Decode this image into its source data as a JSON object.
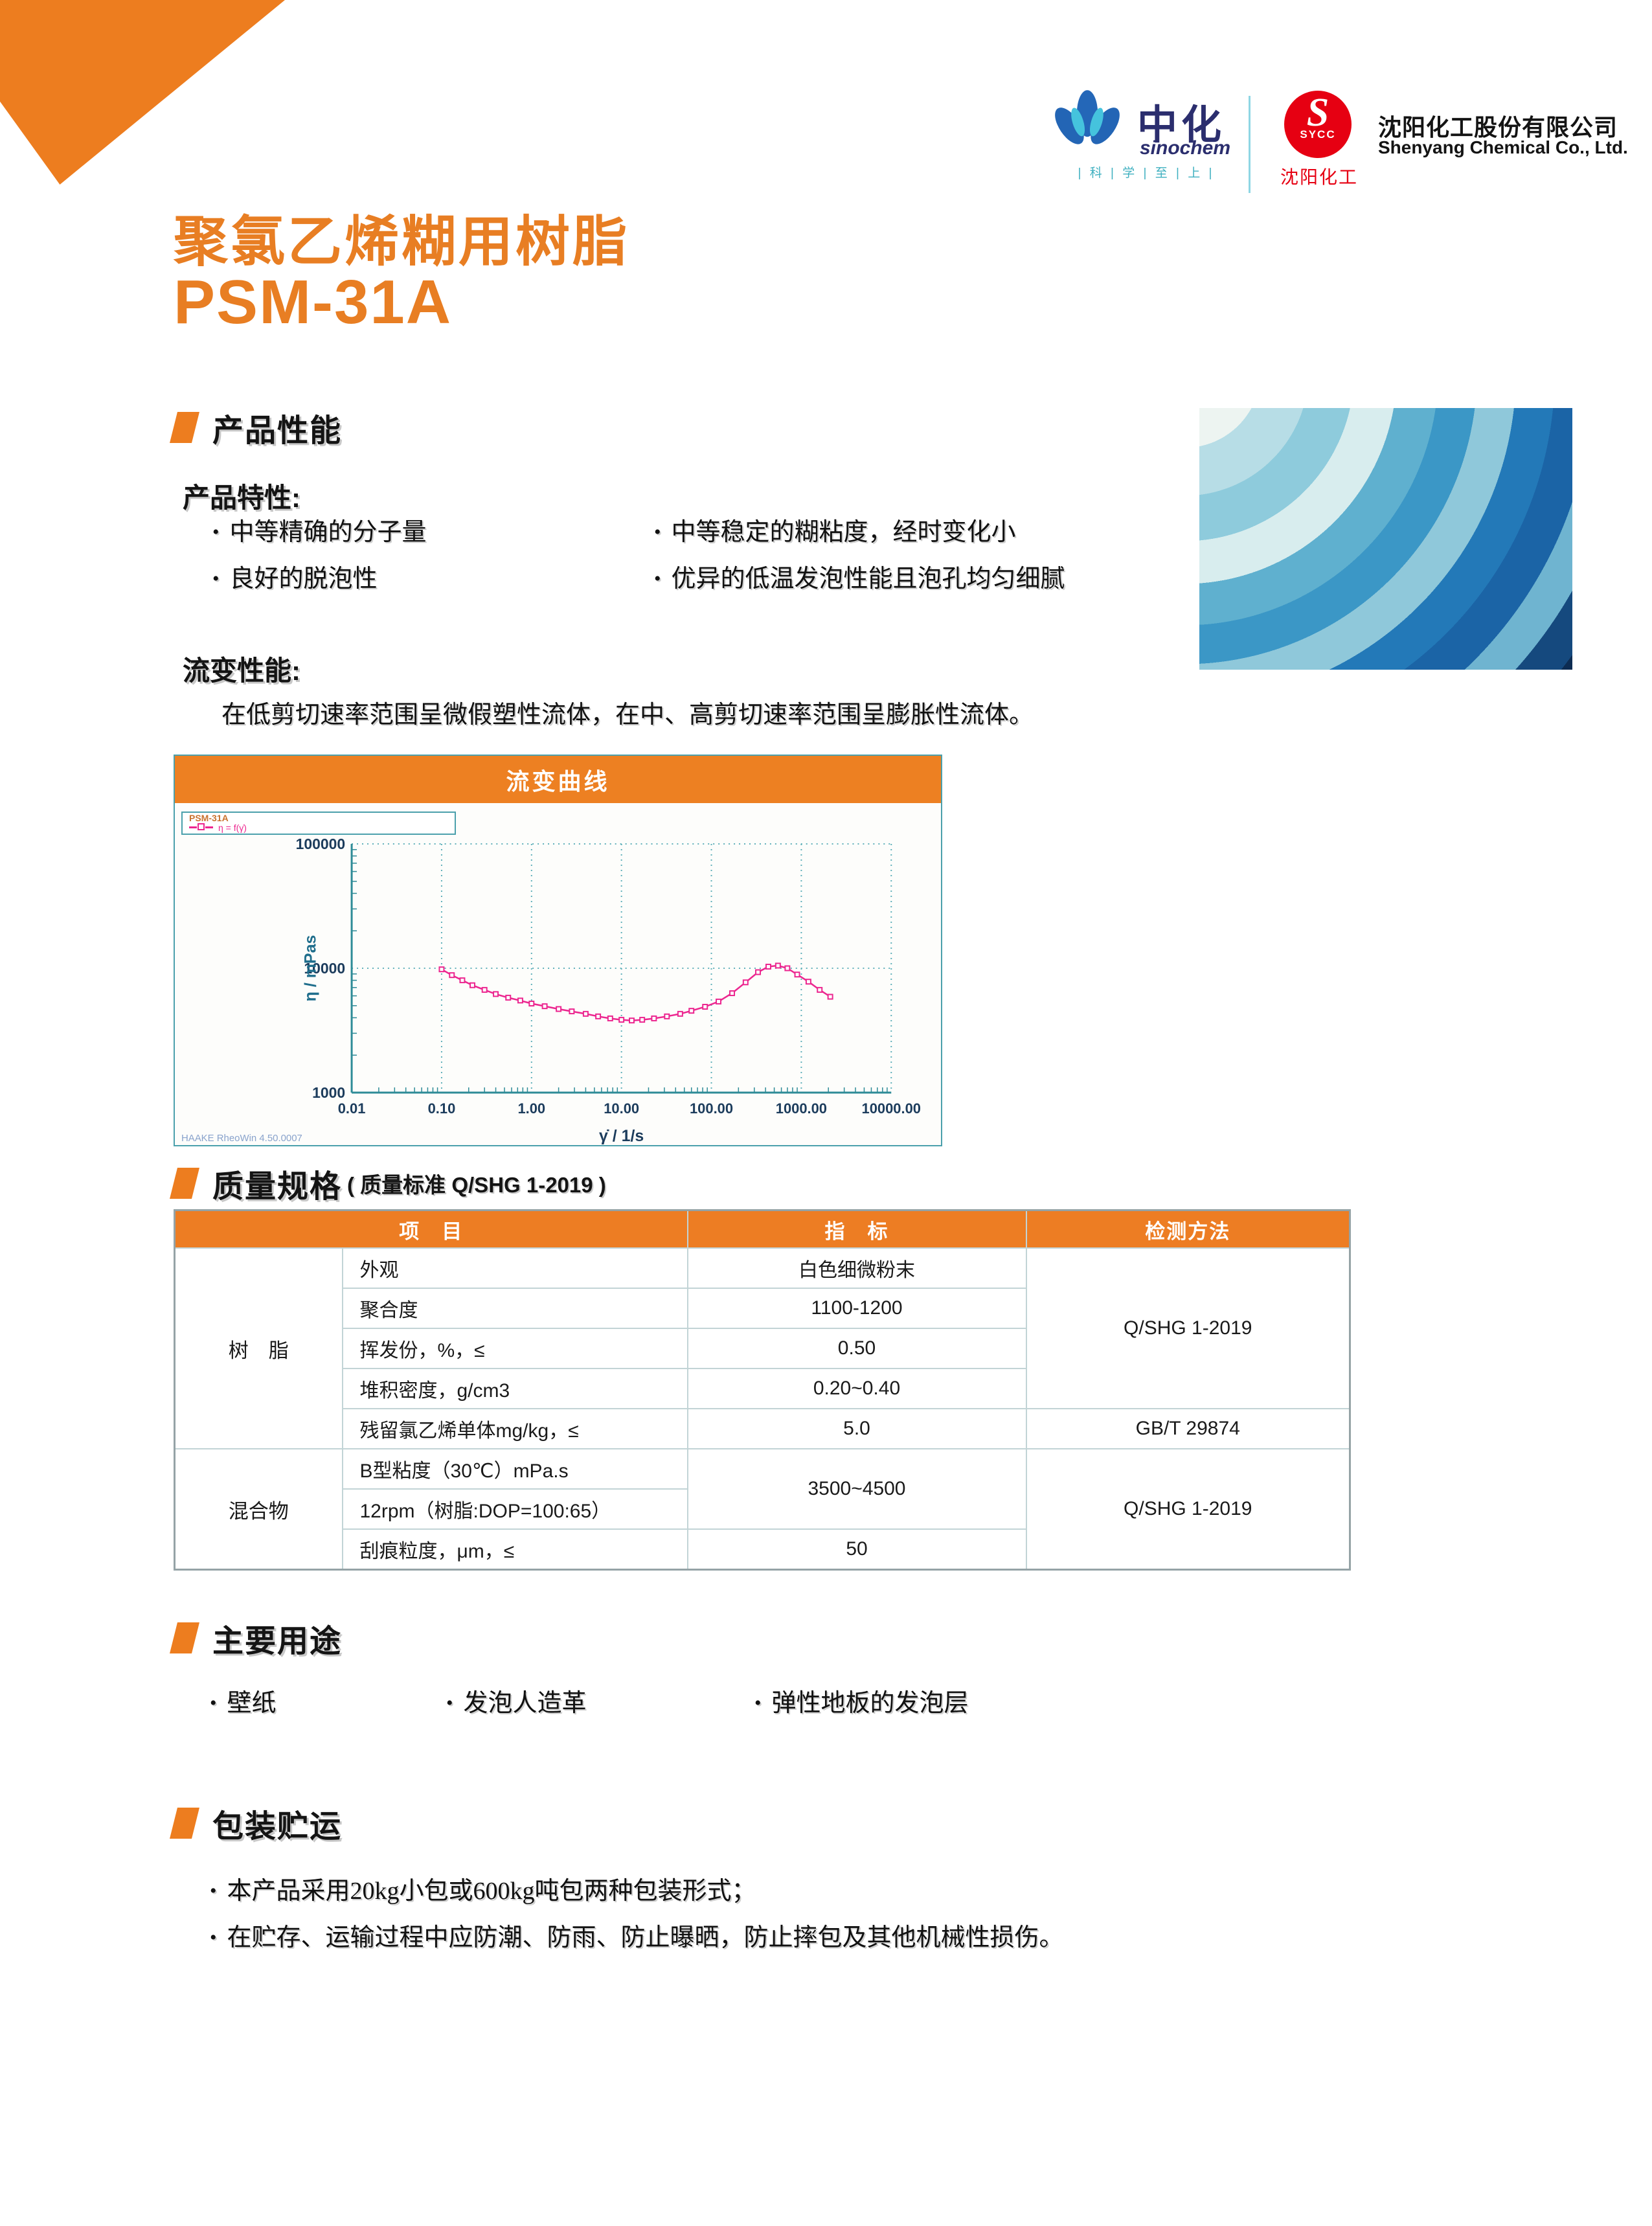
{
  "header": {
    "sinochem": {
      "zh": "中化",
      "en": "sinochem",
      "tagline": "| 科 | 学 | 至 | 上 |"
    },
    "sycc": {
      "s": "S",
      "abbr": "SYCC",
      "caption": "沈阳化工"
    },
    "company": {
      "zh": "沈阳化工股份有限公司",
      "en": "Shenyang Chemical Co., Ltd."
    }
  },
  "title": {
    "line1": "聚氯乙烯糊用树脂",
    "line2": "PSM-31A"
  },
  "performance": {
    "heading": "产品性能",
    "traits_label": "产品特性:",
    "bullets_left": [
      "中等精确的分子量",
      "良好的脱泡性"
    ],
    "bullets_right": [
      "中等稳定的糊粘度，经时变化小",
      "优异的低温发泡性能且泡孔均匀细腻"
    ]
  },
  "rheology": {
    "heading": "流变性能:",
    "paragraph": "在低剪切速率范围呈微假塑性流体，在中、高剪切速率范围呈膨胀性流体。"
  },
  "chart_data": {
    "type": "line",
    "title": "流变曲线",
    "xlabel": "γ̇ / 1/s",
    "ylabel": "η / mPas",
    "xscale": "log",
    "yscale": "log",
    "xlim": [
      0.01,
      10000
    ],
    "ylim": [
      1000,
      100000
    ],
    "x_ticks": [
      "0.01",
      "0.10",
      "1.00",
      "10.00",
      "100.00",
      "1000.00",
      "10000.00"
    ],
    "y_ticks": [
      "1000",
      "10000",
      "100000"
    ],
    "grid": true,
    "legend_position": "top-left",
    "legend": {
      "name": "PSM-31A",
      "formula": "η = f(γ̇)"
    },
    "watermark": "HAAKE RheoWin 4.50.0007",
    "line_color": "#EC268F",
    "grid_color": "#5FB0BA",
    "axis_color": "#2E8B97",
    "tick_label_color": "#1C3C5C",
    "series": [
      {
        "name": "PSM-31A",
        "x": [
          0.1,
          0.13,
          0.17,
          0.22,
          0.3,
          0.4,
          0.55,
          0.75,
          1.0,
          1.4,
          2.0,
          2.8,
          4.0,
          5.5,
          7.5,
          10,
          13,
          17,
          23,
          32,
          45,
          60,
          85,
          120,
          170,
          240,
          330,
          430,
          550,
          700,
          900,
          1200,
          1600,
          2100
        ],
        "y": [
          9800,
          8800,
          8000,
          7300,
          6700,
          6200,
          5800,
          5500,
          5200,
          4950,
          4700,
          4500,
          4300,
          4100,
          3950,
          3850,
          3800,
          3850,
          3950,
          4100,
          4300,
          4550,
          4900,
          5400,
          6300,
          7700,
          9300,
          10300,
          10500,
          10000,
          8900,
          7800,
          6700,
          5900
        ]
      }
    ]
  },
  "quality": {
    "heading": "质量规格",
    "note": "( 质量标准 Q/SHG 1-2019 )",
    "table": {
      "col_item": "项　目",
      "col_value": "指　标",
      "col_method": "检测方法",
      "groups": {
        "resin": {
          "name": "树　脂",
          "rows": [
            {
              "item": "外观",
              "value": "白色细微粉末"
            },
            {
              "item": "聚合度",
              "value": "1100-1200"
            },
            {
              "item": "挥发份，%，≤",
              "value": "0.50"
            },
            {
              "item": "堆积密度，g/cm3",
              "value": "0.20~0.40"
            },
            {
              "item": "残留氯乙烯单体mg/kg，≤",
              "value": "5.0"
            }
          ],
          "method_main": "Q/SHG 1-2019",
          "method_vcm": "GB/T 29874"
        },
        "mixture": {
          "name": "混合物",
          "rows": [
            {
              "item": "B型粘度（30℃）mPa.s"
            },
            {
              "item": "12rpm（树脂:DOP=100:65）"
            },
            {
              "item": "刮痕粒度，μm，≤",
              "value": "50"
            }
          ],
          "merged_value": "3500~4500",
          "method": "Q/SHG 1-2019"
        }
      }
    }
  },
  "uses": {
    "heading": "主要用途",
    "bullets": [
      "壁纸",
      "发泡人造革",
      "弹性地板的发泡层"
    ]
  },
  "packaging": {
    "heading": "包装贮运",
    "bullets": [
      "本产品采用20kg小包或600kg吨包两种包装形式；",
      "在贮存、运输过程中应防潮、防雨、防止曝晒，防止摔包及其他机械性损伤。"
    ]
  },
  "colors": {
    "accent_orange": "#ED7D1F",
    "title_orange": "#E87E23",
    "table_header_orange": "#ED7D23",
    "chart_line_pink": "#EC268F",
    "chart_teal": "#4BA0AC",
    "logo_navy": "#2B2E6E",
    "logo_cyan": "#3FB0C0",
    "sycc_red": "#E60012"
  }
}
